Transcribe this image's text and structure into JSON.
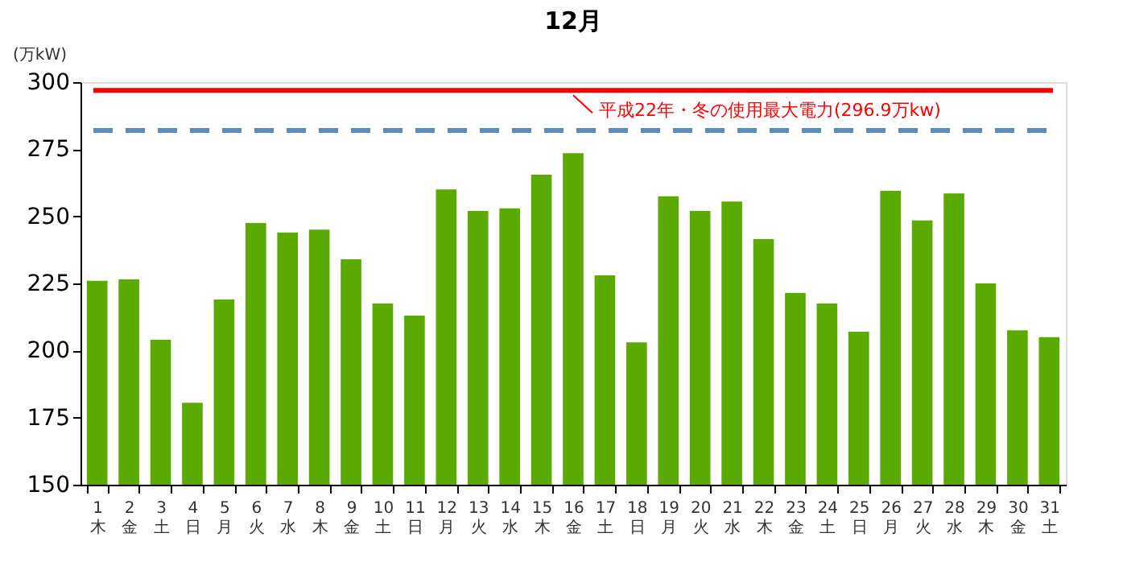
{
  "chart_data": {
    "type": "bar",
    "title": "12月",
    "ylabel": "(万kW)",
    "categories": [
      "1\n木",
      "2\n金",
      "3\n土",
      "4\n日",
      "5\n月",
      "6\n火",
      "7\n水",
      "8\n木",
      "9\n金",
      "10\n土",
      "11\n日",
      "12\n月",
      "13\n火",
      "14\n水",
      "15\n木",
      "16\n金",
      "17\n土",
      "18\n日",
      "19\n月",
      "20\n火",
      "21\n水",
      "22\n木",
      "23\n金",
      "24\n土",
      "25\n日",
      "26\n月",
      "27\n火",
      "28\n水",
      "29\n木",
      "30\n金",
      "31\n土"
    ],
    "values": [
      226,
      226.5,
      204,
      180.5,
      219,
      247.5,
      244,
      245,
      234,
      217.5,
      213,
      260,
      252,
      253,
      265.5,
      273.5,
      228,
      203,
      257.5,
      252,
      255.5,
      241.5,
      221.5,
      217.5,
      207,
      259.5,
      248.5,
      258.5,
      225,
      207.5,
      205
    ],
    "color": "#5aaa00",
    "ylim": [
      150,
      300
    ],
    "yticks": [
      150,
      175,
      200,
      225,
      250,
      275,
      300
    ],
    "grid": false,
    "ref_lines": [
      {
        "axis": "y",
        "value": 296.9,
        "label": "平成22年・冬の使用最大電力(296.9万kw)",
        "color": "#ff0000",
        "line_style": "solid"
      },
      {
        "axis": "y",
        "value": 282,
        "color": "#5b8dbd",
        "line_style": "dashed"
      }
    ]
  }
}
